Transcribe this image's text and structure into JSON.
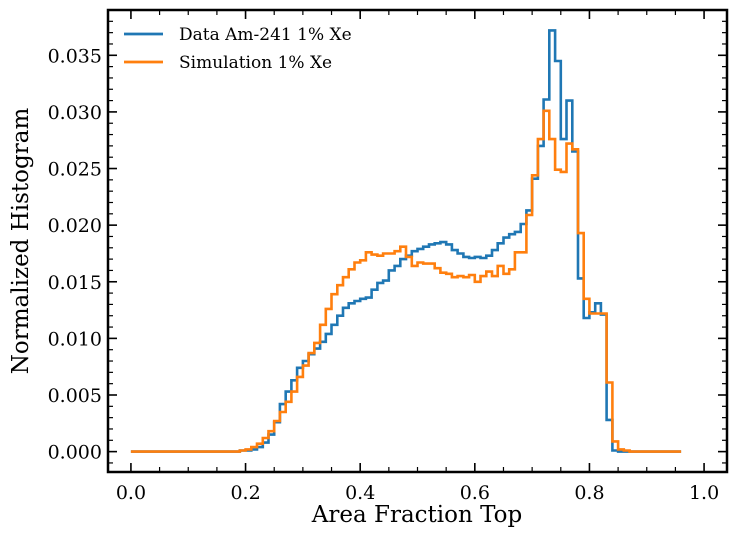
{
  "chart_data": {
    "type": "line",
    "style": "step",
    "title": "",
    "xlabel": "Area Fraction Top",
    "ylabel": "Normalized Histogram",
    "xlim": [
      -0.04,
      1.04
    ],
    "ylim": [
      -0.0018,
      0.039
    ],
    "xticks": [
      0.0,
      0.2,
      0.4,
      0.6,
      0.8,
      1.0
    ],
    "xtick_labels": [
      "0.0",
      "0.2",
      "0.4",
      "0.6",
      "0.8",
      "1.0"
    ],
    "yticks": [
      0.0,
      0.005,
      0.01,
      0.015,
      0.02,
      0.025,
      0.03,
      0.035
    ],
    "ytick_labels": [
      "0.000",
      "0.005",
      "0.010",
      "0.015",
      "0.020",
      "0.025",
      "0.030",
      "0.035"
    ],
    "legend_position": "top-left",
    "bin_start": 0.0,
    "bin_width": 0.01,
    "series": [
      {
        "name": "Data Am-241 1% Xe",
        "color": "#1f77b4",
        "values": [
          0,
          0,
          0,
          0,
          0,
          0,
          0,
          0,
          0,
          0,
          0,
          0,
          0,
          0,
          0,
          0,
          0,
          0,
          0,
          0.0001,
          0.0001,
          0.0002,
          0.0004,
          0.0008,
          0.0015,
          0.0026,
          0.0042,
          0.0053,
          0.0063,
          0.0074,
          0.008,
          0.0086,
          0.0091,
          0.0097,
          0.0104,
          0.0112,
          0.012,
          0.0127,
          0.0131,
          0.0133,
          0.0135,
          0.0136,
          0.0143,
          0.0149,
          0.0151,
          0.016,
          0.0164,
          0.017,
          0.0173,
          0.0177,
          0.0179,
          0.0181,
          0.0183,
          0.0184,
          0.0185,
          0.0183,
          0.0178,
          0.0175,
          0.0172,
          0.0171,
          0.0172,
          0.0171,
          0.0173,
          0.0178,
          0.0184,
          0.0189,
          0.0192,
          0.0194,
          0.0201,
          0.0213,
          0.0241,
          0.027,
          0.0311,
          0.0372,
          0.0345,
          0.0276,
          0.031,
          0.0265,
          0.0153,
          0.0118,
          0.0123,
          0.0131,
          0.0121,
          0.0028,
          0.0001,
          0,
          0,
          0,
          0,
          0,
          0,
          0,
          0,
          0,
          0,
          0
        ]
      },
      {
        "name": "Simulation 1% Xe",
        "color": "#ff7f0e",
        "values": [
          0,
          0,
          0,
          0,
          0,
          0,
          0,
          0,
          0,
          0,
          0,
          0,
          0,
          0,
          0,
          0,
          0,
          0,
          0,
          0.0001,
          0.0002,
          0.0004,
          0.0007,
          0.0012,
          0.0018,
          0.0027,
          0.0035,
          0.0044,
          0.0053,
          0.0066,
          0.0076,
          0.0087,
          0.0096,
          0.0112,
          0.0126,
          0.0139,
          0.0147,
          0.0154,
          0.0161,
          0.0167,
          0.0169,
          0.0176,
          0.0174,
          0.0173,
          0.0175,
          0.0175,
          0.0177,
          0.0181,
          0.0172,
          0.0164,
          0.0167,
          0.0166,
          0.0166,
          0.0162,
          0.0158,
          0.0157,
          0.0154,
          0.0155,
          0.0154,
          0.0156,
          0.015,
          0.0155,
          0.0159,
          0.0155,
          0.0164,
          0.0157,
          0.0161,
          0.0176,
          0.0176,
          0.0209,
          0.0244,
          0.0276,
          0.0301,
          0.0276,
          0.0249,
          0.0247,
          0.0272,
          0.0267,
          0.0193,
          0.0135,
          0.0122,
          0.0122,
          0.0122,
          0.0061,
          0.0009,
          0.0002,
          0.0001,
          0,
          0,
          0,
          0,
          0,
          0,
          0,
          0,
          0
        ]
      }
    ]
  }
}
